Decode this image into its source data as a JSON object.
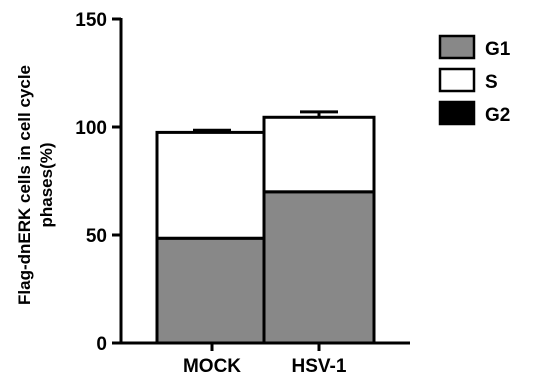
{
  "chart_data": {
    "type": "bar",
    "stacked": true,
    "ylabel_line1": "Flag-dnERK cells in cell cycle",
    "ylabel_line2": "phases(%)",
    "ylim": [
      0,
      150
    ],
    "yticks": [
      "0",
      "50",
      "100",
      "150"
    ],
    "categories": [
      "MOCK",
      "HSV-1"
    ],
    "series": [
      {
        "name": "G1",
        "values": [
          48.5,
          70
        ],
        "error": [
          2.5,
          1
        ],
        "color": "#888888"
      },
      {
        "name": "S",
        "values": [
          49,
          34.5
        ],
        "error": [
          1,
          2.5
        ],
        "color": "#ffffff"
      },
      {
        "name": "G2",
        "values": [
          0,
          0
        ],
        "error": [
          0,
          0
        ],
        "color": "#000000"
      }
    ],
    "legend_position": "top-right"
  }
}
